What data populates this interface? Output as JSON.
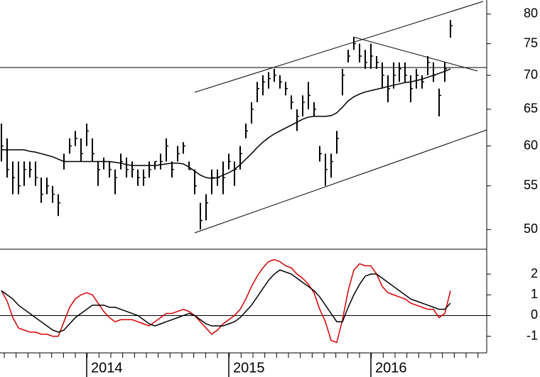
{
  "chart_data": [
    {
      "type": "ohlc",
      "categories": [
        null,
        null,
        null,
        null,
        null,
        null,
        null,
        null,
        null,
        null,
        null,
        null,
        null,
        null,
        null,
        "2014",
        null,
        null,
        null,
        null,
        null,
        null,
        null,
        null,
        null,
        null,
        null,
        null,
        null,
        null,
        null,
        null,
        null,
        null,
        null,
        null,
        null,
        null,
        null,
        null,
        "2015",
        null,
        null,
        null,
        null,
        null,
        null,
        null,
        null,
        null,
        null,
        null,
        null,
        null,
        null,
        null,
        null,
        null,
        null,
        null,
        null,
        null,
        null,
        null,
        null,
        "2016",
        null,
        null,
        null,
        null,
        null,
        null,
        null,
        null,
        null,
        null,
        null,
        null,
        null,
        null
      ],
      "high": [
        63,
        61,
        58,
        58,
        58,
        58,
        58,
        56,
        56,
        55,
        54,
        59,
        61,
        62,
        61,
        63,
        61,
        58,
        58.5,
        58,
        57,
        59,
        58.5,
        58,
        57,
        57,
        58,
        58,
        59,
        61,
        58,
        60,
        60.5,
        58,
        57,
        53,
        54,
        57,
        57,
        58,
        59,
        58,
        60,
        63,
        66,
        69,
        70,
        70.5,
        71,
        70,
        69,
        67,
        65,
        67,
        69,
        66,
        60,
        59,
        59,
        62,
        71,
        74,
        76,
        75,
        74,
        75,
        73,
        72,
        70,
        72,
        72,
        72,
        70,
        71,
        70,
        73,
        72,
        68,
        72,
        79
      ],
      "low": [
        58,
        56,
        54,
        54,
        55,
        56,
        55,
        53,
        54,
        53,
        51.5,
        57,
        59,
        60,
        58,
        60,
        58,
        55,
        57,
        56,
        54,
        57,
        56,
        56,
        55,
        55,
        56,
        57,
        57,
        58,
        56,
        58,
        59,
        57,
        54,
        50,
        51,
        54,
        55,
        54,
        57,
        55,
        57,
        61,
        63,
        66,
        67,
        68,
        69,
        68,
        67,
        65,
        62,
        64,
        65,
        64,
        58,
        55,
        56,
        59,
        67,
        72,
        74,
        72,
        71,
        71,
        71,
        68,
        66,
        68,
        69,
        69,
        66,
        68,
        68,
        70,
        69,
        64,
        69,
        76
      ],
      "close": [
        60,
        57,
        56,
        55,
        57,
        57,
        56,
        54,
        55,
        54,
        53,
        58,
        60,
        61,
        59,
        62,
        59,
        57,
        58,
        57,
        56,
        58,
        57,
        57,
        56,
        56,
        57,
        58,
        58,
        60,
        57,
        59,
        60,
        57,
        55,
        51,
        53,
        56,
        56,
        56,
        58,
        57,
        59,
        62,
        65,
        68,
        69,
        69.5,
        70,
        69,
        68,
        66,
        64,
        66,
        67,
        65,
        59,
        57,
        58,
        61,
        70,
        73,
        75,
        73,
        72,
        73,
        72,
        70,
        68,
        70,
        71,
        70,
        68,
        70,
        69,
        72,
        70,
        67,
        71,
        78
      ],
      "color": "#000000",
      "series": [
        {
          "color": "#000000",
          "values": [
            59.5,
            59.5,
            59.5,
            59.5,
            59.5,
            59.3,
            59.2,
            59,
            58.8,
            58.6,
            58.3,
            58,
            58,
            58,
            58,
            58,
            58,
            58,
            58,
            58,
            57.9,
            57.8,
            57.6,
            57.5,
            57.5,
            57.5,
            57.5,
            57.5,
            57.6,
            57.7,
            57.8,
            57.8,
            57.7,
            57.3,
            56.8,
            56.3,
            56,
            55.9,
            56,
            56.3,
            56.6,
            57,
            57.6,
            58.3,
            59,
            59.8,
            60.5,
            61.1,
            61.6,
            62,
            62.4,
            62.8,
            63.2,
            63.6,
            63.9,
            64,
            64,
            64,
            64.1,
            64.5,
            65.3,
            66.2,
            66.8,
            67.2,
            67.5,
            67.7,
            67.9,
            68.1,
            68.3,
            68.5,
            68.7,
            68.9,
            69,
            69.2,
            69.4,
            69.7,
            70,
            70.3,
            70.6,
            71
          ]
        }
      ],
      "hline": 71.2,
      "log_scale": true,
      "ylim": [
        47.9,
        82.5
      ],
      "yticks": [
        50,
        55,
        60,
        65,
        70,
        75,
        80
      ]
    },
    {
      "type": "line",
      "series": [
        {
          "color": "#d40000",
          "values": [
            1.2,
            0.7,
            -0.1,
            -0.6,
            -0.7,
            -0.8,
            -0.8,
            -0.9,
            -0.9,
            -1.0,
            -1.0,
            -0.3,
            0.4,
            0.8,
            1.0,
            1.1,
            1.0,
            0.6,
            0.2,
            -0.1,
            -0.3,
            -0.2,
            -0.2,
            -0.2,
            -0.3,
            -0.4,
            -0.5,
            -0.3,
            -0.1,
            0.1,
            0.1,
            0.2,
            0.3,
            0.2,
            0,
            -0.3,
            -0.6,
            -0.9,
            -0.7,
            -0.4,
            -0.2,
            0,
            0.3,
            0.8,
            1.4,
            1.9,
            2.3,
            2.6,
            2.7,
            2.6,
            2.4,
            2.3,
            2.0,
            1.8,
            1.5,
            1.1,
            0.3,
            -0.3,
            -1.2,
            -1.3,
            -0.2,
            1.2,
            2.2,
            2.5,
            2.4,
            2.4,
            2.0,
            1.4,
            1.1,
            1.0,
            0.9,
            0.8,
            0.6,
            0.5,
            0.4,
            0.3,
            0.3,
            -0.1,
            0.1,
            1.2
          ]
        },
        {
          "color": "#000000",
          "values": [
            1.2,
            1.0,
            0.8,
            0.5,
            0.3,
            0.1,
            -0.1,
            -0.3,
            -0.5,
            -0.7,
            -0.8,
            -0.7,
            -0.4,
            -0.1,
            0.1,
            0.3,
            0.5,
            0.5,
            0.5,
            0.4,
            0.4,
            0.3,
            0.2,
            0.1,
            0,
            -0.2,
            -0.4,
            -0.5,
            -0.4,
            -0.3,
            -0.2,
            -0.1,
            0,
            0.1,
            0,
            -0.2,
            -0.4,
            -0.5,
            -0.5,
            -0.5,
            -0.4,
            -0.3,
            -0.1,
            0.2,
            0.5,
            0.9,
            1.3,
            1.7,
            2.0,
            2.2,
            2.1,
            2.0,
            1.8,
            1.6,
            1.4,
            1.2,
            0.9,
            0.5,
            0.1,
            -0.3,
            -0.3,
            0.4,
            1.0,
            1.5,
            1.9,
            2.0,
            2.0,
            1.8,
            1.6,
            1.4,
            1.2,
            1.0,
            0.8,
            0.7,
            0.6,
            0.5,
            0.4,
            0.3,
            0.3,
            0.6
          ]
        }
      ],
      "ylim": [
        -1.8,
        3.2
      ],
      "yticks": [
        -1,
        0,
        1,
        2
      ]
    }
  ]
}
